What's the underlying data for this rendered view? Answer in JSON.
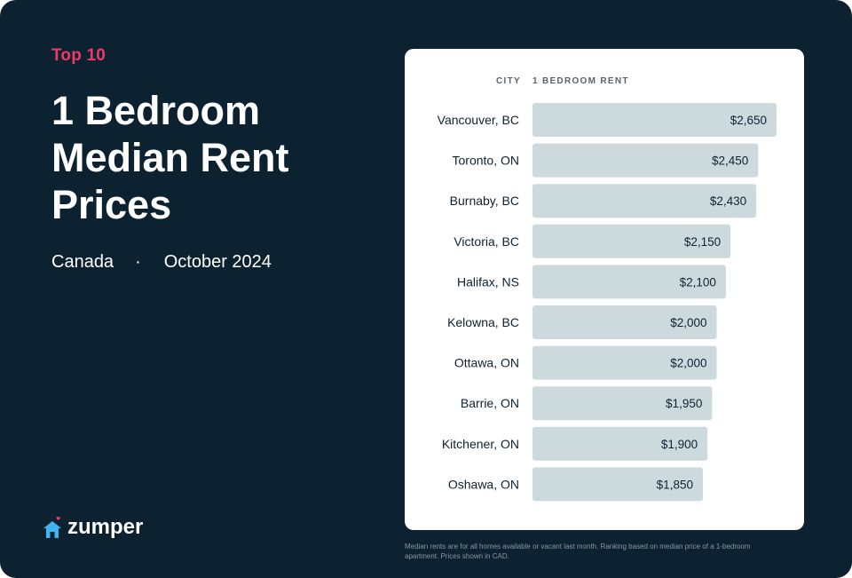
{
  "header": {
    "eyebrow": "Top 10",
    "title": "1 Bedroom Median Rent Prices",
    "region": "Canada",
    "separator": "·",
    "date": "October 2024"
  },
  "brand": {
    "name": "zumper",
    "icon": "house-heart-icon"
  },
  "table": {
    "col_city": "CITY",
    "col_rent": "1 BEDROOM RENT"
  },
  "footnote": "Median rents are for all homes available or vacant last month. Ranking based on median price of a 1-bedroom apartment. Prices shown in CAD.",
  "colors": {
    "background": "#0d2231",
    "accent": "#f0386b",
    "bar": "#cddadd",
    "brand_icon": "#3fb4f0"
  },
  "chart_data": {
    "type": "bar",
    "orientation": "horizontal",
    "categories": [
      "Vancouver, BC",
      "Toronto, ON",
      "Burnaby, BC",
      "Victoria, BC",
      "Halifax, NS",
      "Kelowna, BC",
      "Ottawa, ON",
      "Barrie, ON",
      "Kitchener, ON",
      "Oshawa, ON"
    ],
    "values": [
      2650,
      2450,
      2430,
      2150,
      2100,
      2000,
      2000,
      1950,
      1900,
      1850
    ],
    "value_labels": [
      "$2,650",
      "$2,450",
      "$2,430",
      "$2,150",
      "$2,100",
      "$2,000",
      "$2,000",
      "$1,950",
      "$1,900",
      "$1,850"
    ],
    "xlim": [
      0,
      2650
    ],
    "grid": false
  }
}
